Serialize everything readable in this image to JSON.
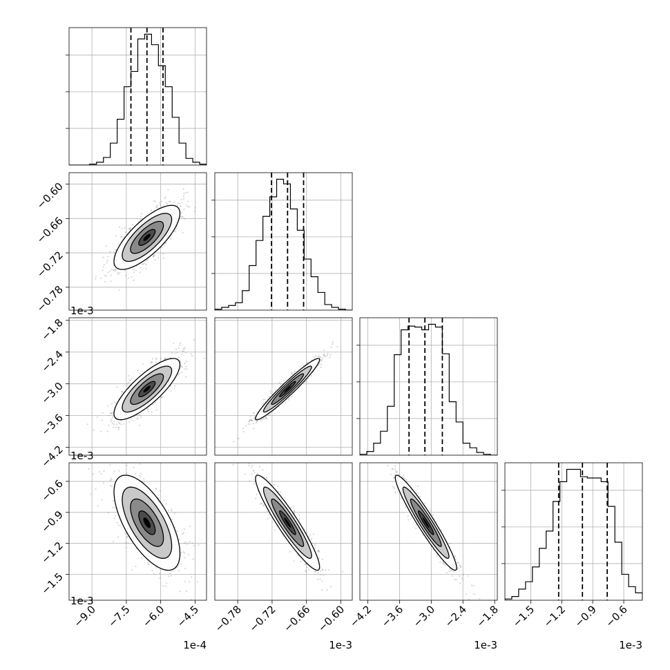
{
  "chart_data": {
    "type": "corner",
    "description_labels": "triangular corner plot of 4 parameters: 1D marginal histograms on the diagonal, 2D density contours below",
    "parameters": [
      {
        "scale_label": "1e-4",
        "range": [
          -10.0,
          -4.0
        ],
        "ticks": [
          -9.0,
          -7.5,
          -6.0,
          -4.5
        ],
        "tick_labels": [
          "−9.0",
          "−7.5",
          "−6.0",
          "−4.5"
        ],
        "mean": -6.6,
        "sd": 0.72,
        "quantiles": [
          -7.3,
          -6.6,
          -5.9
        ],
        "hist": {
          "edges": [
            -10.0,
            -9.7,
            -9.4,
            -9.1,
            -8.8,
            -8.5,
            -8.2,
            -7.9,
            -7.6,
            -7.3,
            -7.0,
            -6.7,
            -6.4,
            -6.1,
            -5.8,
            -5.5,
            -5.2,
            -4.9,
            -4.6,
            -4.3,
            -4.0
          ],
          "counts": [
            0,
            0,
            0,
            1,
            3,
            8,
            23,
            48,
            82,
            98,
            132,
            137,
            126,
            104,
            82,
            50,
            23,
            7,
            3,
            1
          ]
        }
      },
      {
        "scale_label": "1e-3",
        "range": [
          -0.82,
          -0.58
        ],
        "ticks": [
          -0.78,
          -0.72,
          -0.66,
          -0.6
        ],
        "tick_labels": [
          "−0.78",
          "−0.72",
          "−0.66",
          "−0.60"
        ],
        "mean": -0.693,
        "sd": 0.028,
        "quantiles": [
          -0.721,
          -0.693,
          -0.665
        ],
        "hist": {
          "edges": [
            -0.82,
            -0.808,
            -0.796,
            -0.784,
            -0.772,
            -0.76,
            -0.748,
            -0.736,
            -0.724,
            -0.712,
            -0.7,
            -0.688,
            -0.676,
            -0.664,
            -0.652,
            -0.64,
            -0.628,
            -0.616,
            -0.604,
            -0.592,
            -0.58
          ],
          "counts": [
            1,
            3,
            5,
            8,
            21,
            48,
            75,
            101,
            122,
            141,
            136,
            109,
            86,
            55,
            36,
            19,
            6,
            3,
            1,
            0
          ]
        }
      },
      {
        "scale_label": "1e-3",
        "range": [
          -4.35,
          -1.75
        ],
        "ticks": [
          -4.2,
          -3.6,
          -3.0,
          -2.4,
          -1.8
        ],
        "tick_labels": [
          "−4.2",
          "−3.6",
          "−3.0",
          "−2.4",
          "−1.8"
        ],
        "mean": -3.1,
        "sd": 0.29,
        "quantiles": [
          -3.42,
          -3.12,
          -2.79
        ],
        "hist": {
          "edges": [
            -4.35,
            -4.22,
            -4.09,
            -3.96,
            -3.83,
            -3.7,
            -3.57,
            -3.44,
            -3.31,
            -3.18,
            -3.05,
            -2.92,
            -2.79,
            -2.66,
            -2.53,
            -2.4,
            -2.27,
            -2.14,
            -2.01,
            -1.88,
            -1.75
          ],
          "counts": [
            1,
            4,
            13,
            26,
            53,
            109,
            136,
            140,
            139,
            136,
            142,
            139,
            110,
            58,
            36,
            13,
            8,
            3,
            1,
            0
          ]
        }
      },
      {
        "scale_label": "1e-3",
        "range": [
          -1.75,
          -0.42
        ],
        "ticks": [
          -1.5,
          -1.2,
          -0.9,
          -0.6
        ],
        "tick_labels": [
          "−1.5",
          "−1.2",
          "−0.9",
          "−0.6"
        ],
        "mean": -1.0,
        "sd": 0.23,
        "quantiles": [
          -1.23,
          -1.0,
          -0.76
        ],
        "hist": {
          "edges": [
            -1.75,
            -1.6835,
            -1.617,
            -1.5505,
            -1.484,
            -1.4175,
            -1.351,
            -1.2845,
            -1.218,
            -1.1515,
            -1.085,
            -1.0185,
            -0.952,
            -0.8855,
            -0.819,
            -0.7525,
            -0.686,
            -0.6195,
            -0.553,
            -0.4865,
            -0.42
          ],
          "counts": [
            1,
            3,
            9,
            15,
            27,
            42,
            56,
            80,
            96,
            106,
            106,
            100,
            99,
            99,
            96,
            76,
            47,
            21,
            11,
            6
          ]
        }
      }
    ],
    "correlations": [
      [
        1.0,
        0.75,
        0.8,
        -0.65
      ],
      [
        0.75,
        1.0,
        0.96,
        -0.93
      ],
      [
        0.8,
        0.96,
        1.0,
        -0.95
      ],
      [
        -0.65,
        -0.93,
        -0.95,
        1.0
      ]
    ],
    "contour_levels_sigma": [
      0.5,
      1.0,
      1.5,
      2.0
    ],
    "contour_fill_colors": [
      "#000000",
      "#3f3f3f",
      "#7f7f7f",
      "#bfbfbf",
      "#ffffff"
    ],
    "grid": true,
    "quantile_line_style": "dashed"
  }
}
